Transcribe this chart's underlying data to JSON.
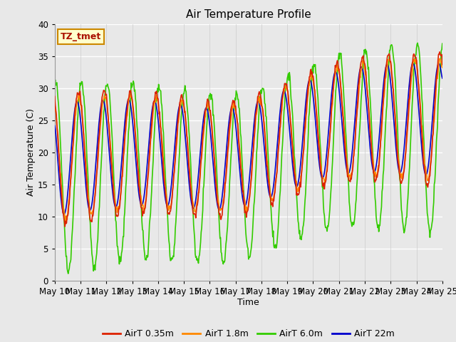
{
  "title": "Air Temperature Profile",
  "xlabel": "Time",
  "ylabel": "Air Temperature (C)",
  "ylim": [
    0,
    40
  ],
  "background_color": "#e8e8e8",
  "annotation_text": "TZ_tmet",
  "annotation_color": "#aa1100",
  "annotation_bg": "#ffffcc",
  "annotation_border": "#cc8800",
  "series": {
    "AirT 0.35m": {
      "color": "#dd2200",
      "lw": 1.2
    },
    "AirT 1.8m": {
      "color": "#ff8800",
      "lw": 1.2
    },
    "AirT 6.0m": {
      "color": "#33cc00",
      "lw": 1.2
    },
    "AirT 22m": {
      "color": "#0000cc",
      "lw": 1.2
    }
  },
  "xtick_labels": [
    "May 10",
    "May 11",
    "May 12",
    "May 13",
    "May 14",
    "May 15",
    "May 16",
    "May 17",
    "May 18",
    "May 19",
    "May 20",
    "May 21",
    "May 22",
    "May 23",
    "May 24",
    "May 25"
  ],
  "grid_color": "#ffffff"
}
